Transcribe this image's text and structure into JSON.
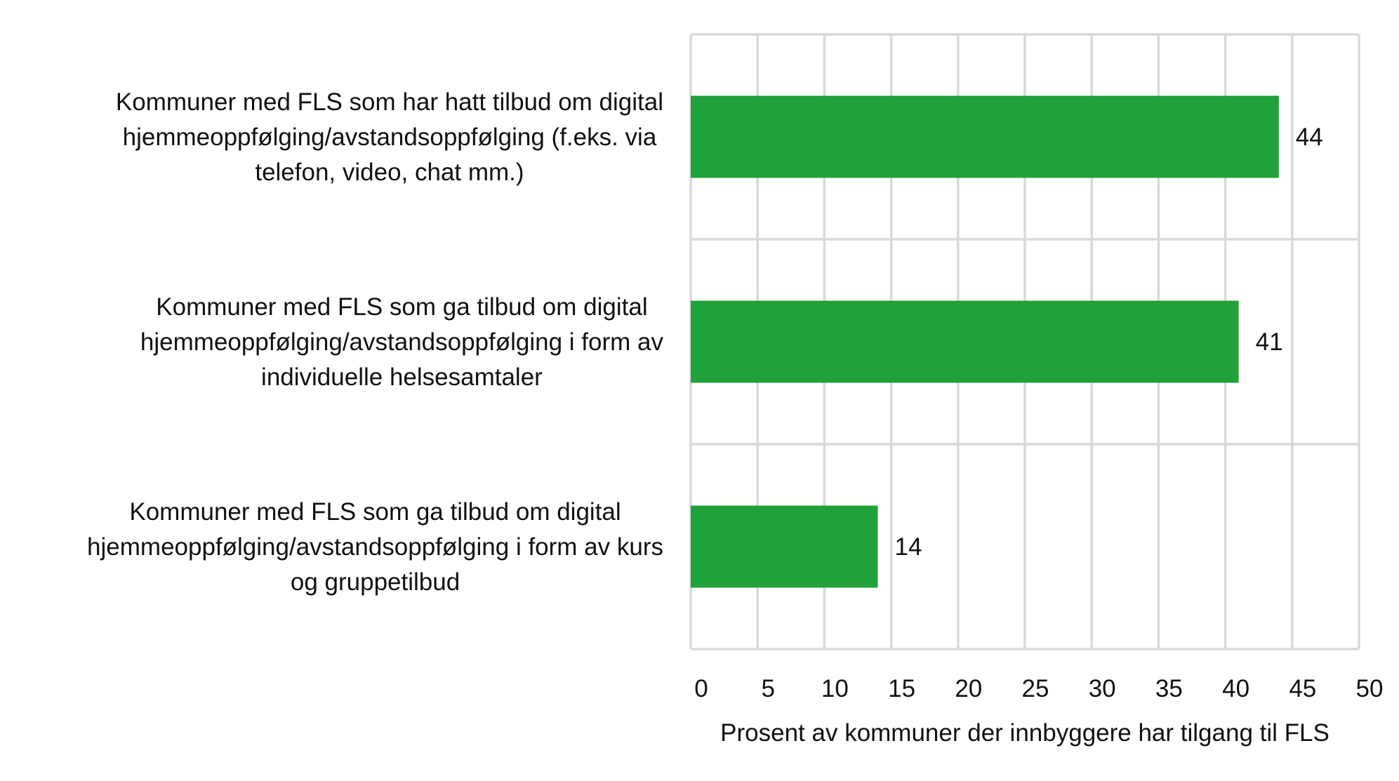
{
  "chart_data": {
    "type": "bar",
    "orientation": "horizontal",
    "categories": [
      [
        "Kommuner med FLS som har hatt tilbud om digital",
        "hjemmeoppfølging/avstandsoppfølging (f.eks. via",
        "telefon, video, chat mm.)"
      ],
      [
        "Kommuner med FLS som ga tilbud om digital",
        "hjemmeoppfølging/avstandsoppfølging i form av",
        "individuelle helsesamtaler"
      ],
      [
        "Kommuner med FLS som ga tilbud om digital",
        "hjemmeoppfølging/avstandsoppfølging i form av kurs",
        "og gruppetilbud"
      ]
    ],
    "values": [
      44,
      41,
      14
    ],
    "data_labels": [
      "44",
      "41",
      "14"
    ],
    "xlabel": "Prosent av kommuner der innbyggere har tilgang til FLS",
    "xlim": [
      0,
      50
    ],
    "xticks": [
      "0",
      "5",
      "10",
      "15",
      "20",
      "25",
      "30",
      "35",
      "40",
      "45",
      "50"
    ],
    "grid": true,
    "bar_color": "#21a139",
    "grid_color": "#d9d9d9"
  }
}
